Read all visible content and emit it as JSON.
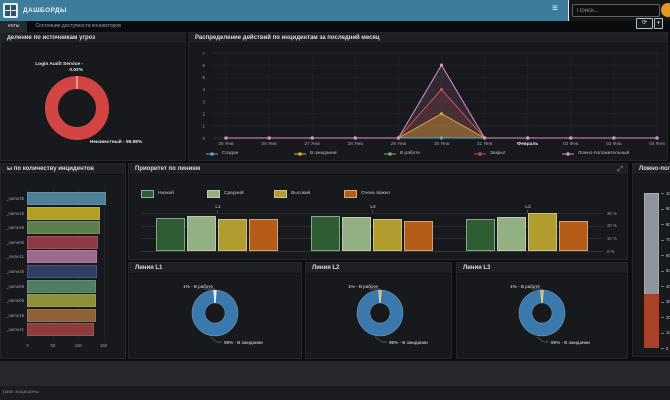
{
  "topbar": {
    "title": "ДАШБОРДЫ",
    "search_placeholder": "Поиск...",
    "icons": {
      "menu": "≡",
      "refresh": "⟳",
      "caret": "▾"
    }
  },
  "tabs": [
    {
      "label": "енты",
      "active": true
    },
    {
      "label": "Состояние доступности коннекторов",
      "active": false
    }
  ],
  "panels": {
    "threat_sources": {
      "title": "деление по источникам угроз",
      "ring_color": "#d24543",
      "callout_small": [
        "Login Audit Service -",
        "0.02%"
      ],
      "label_main": "Неизвестный - 99.98%"
    },
    "actions": {
      "title": "Распределение действий по инцидентам за последний месяц",
      "chart_type": "line",
      "y_ticks": [
        7,
        6,
        5,
        4,
        3,
        2,
        1,
        0
      ],
      "x_ticks": [
        "25 Янв",
        "26 Янв",
        "27 Янв",
        "28 Янв",
        "29 Янв",
        "30 Янв",
        "31 Янв",
        "Февраль",
        "02 Фев",
        "03 Фев",
        "04 Фев"
      ],
      "bold_tick": "Февраль",
      "series": [
        {
          "name": "Создан",
          "color": "#58a6c9",
          "fill": 0,
          "values": [
            0,
            0,
            0,
            0,
            0,
            0,
            0,
            0,
            0,
            0,
            0
          ]
        },
        {
          "name": "В ожидании",
          "color": "#ddb31f",
          "fill": 0.4,
          "values": [
            0,
            0,
            0,
            0,
            0,
            2,
            0,
            0,
            0,
            0,
            0
          ]
        },
        {
          "name": "В работе",
          "color": "#73b25e",
          "fill": 0,
          "values": [
            0,
            0,
            0,
            0,
            0,
            0,
            0,
            0,
            0,
            0,
            0
          ]
        },
        {
          "name": "Закрыт",
          "color": "#c94840",
          "fill": 0.16,
          "values": [
            0,
            0,
            0,
            0,
            0,
            4,
            0,
            0,
            0,
            0,
            0
          ]
        },
        {
          "name": "Ложно-положительный",
          "color": "#d693cc",
          "fill": 0.13,
          "values": [
            0,
            0,
            0,
            0,
            0,
            6,
            0,
            0,
            0,
            0,
            0
          ]
        }
      ]
    },
    "incidents_by_trigger": {
      "title": "ы по количеству инцидентов",
      "chart_type": "bar",
      "x_ticks": [
        0,
        50,
        100,
        150
      ],
      "bars": [
        {
          "label": "_name35",
          "value": 156,
          "color": "#4e8098"
        },
        {
          "label": "_name15",
          "value": 144,
          "color": "#b3a01f"
        },
        {
          "label": "_name49",
          "value": 143,
          "color": "#5d7f4a"
        },
        {
          "label": "_name06",
          "value": 141,
          "color": "#8e3a42"
        },
        {
          "label": "_name11",
          "value": 139,
          "color": "#9c6b8f"
        },
        {
          "label": "_name25",
          "value": 138,
          "color": "#2e3d63"
        },
        {
          "label": "_name58",
          "value": 137,
          "color": "#4f7f63"
        },
        {
          "label": "_name05",
          "value": 137,
          "color": "#8f8f3a"
        },
        {
          "label": "_name18",
          "value": 136,
          "color": "#8f6134"
        },
        {
          "label": "_name41",
          "value": 133,
          "color": "#8f3c3c"
        }
      ]
    },
    "priority": {
      "title": "Приоритет по линиям",
      "expand_icon": "⤢",
      "chart_type": "grouped-bar",
      "legend": [
        {
          "label": "Низкий",
          "color": "#2e5c33"
        },
        {
          "label": "Средний",
          "color": "#93b083"
        },
        {
          "label": "Высокий",
          "color": "#b29c2e"
        },
        {
          "label": "Очень важно",
          "color": "#b55c17"
        }
      ],
      "groups": [
        {
          "label": "L1",
          "values": [
            26,
            28,
            25,
            25
          ]
        },
        {
          "label": "L2",
          "values": [
            28,
            27,
            25,
            24
          ]
        },
        {
          "label": "L3",
          "values": [
            25,
            27,
            30,
            24
          ]
        }
      ],
      "y_ticks": [
        "30 %",
        "20 %",
        "10 %",
        "0 %"
      ]
    },
    "line_donuts": [
      {
        "title": "Линия L1",
        "top_label": "1% - В работе",
        "bottom_label": "99% - В ожидании",
        "ring_color": "#3a79ad",
        "slice_color": "#e9ecef"
      },
      {
        "title": "Линия L2",
        "top_label": "1% - В работе",
        "bottom_label": "99% - В ожидании",
        "ring_color": "#3a79ad",
        "slice_color": "#d9af1f"
      },
      {
        "title": "Линия L3",
        "top_label": "1% - В работе",
        "bottom_label": "99% - В ожидании",
        "ring_color": "#3a79ad",
        "slice_color": "#d9af1f"
      }
    ],
    "false_positives": {
      "title": "Ложно-полож",
      "chart_type": "gauge",
      "scale": [
        100,
        90,
        80,
        70,
        60,
        50,
        40,
        30,
        20,
        10,
        0
      ],
      "fill_pct": 35,
      "fill_color": "#a8432a",
      "track_color": "#8e9499"
    }
  },
  "footer": {
    "text": "рава защищены"
  }
}
